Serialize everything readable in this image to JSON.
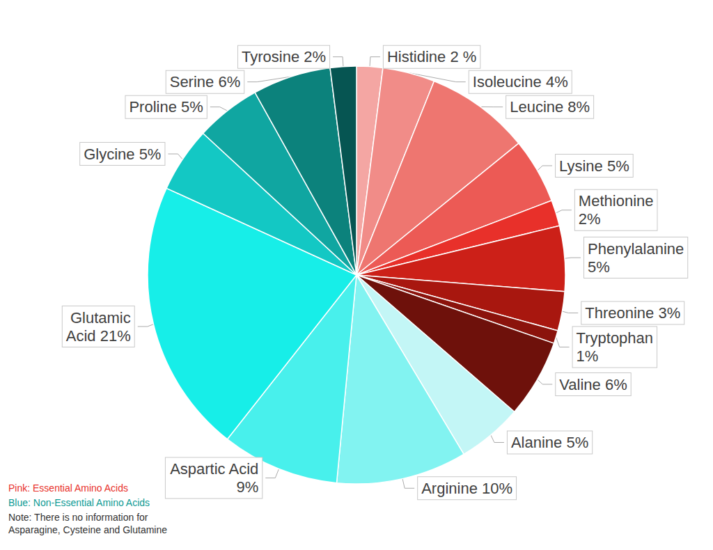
{
  "chart_data": {
    "type": "pie",
    "categories": [
      "Histidine",
      "Isoleucine",
      "Leucine",
      "Lysine",
      "Methionine",
      "Phenylalanine",
      "Threonine",
      "Tryptophan",
      "Valine",
      "Alanine",
      "Arginine",
      "Aspartic Acid",
      "Glutamic Acid",
      "Glycine",
      "Proline",
      "Serine",
      "Tyrosine"
    ],
    "values": [
      2,
      4,
      8,
      5,
      2,
      5,
      3,
      1,
      6,
      5,
      10,
      9,
      21,
      5,
      5,
      6,
      2
    ],
    "value_labels": [
      "Histidine 2 %",
      "Isoleucine 4%",
      "Leucine 8%",
      "Lysine 5%",
      "Methionine\n2%",
      "Phenylalanine\n5%",
      "Threonine 3%",
      "Tryptophan\n1%",
      "Valine 6%",
      "Alanine 5%",
      "Arginine 10%",
      "Aspartic Acid\n9%",
      "Glutamic\nAcid 21%",
      "Glycine 5%",
      "Proline 5%",
      "Serine 6%",
      "Tyrosine 2%"
    ],
    "colors": [
      "#f4a6a3",
      "#f18c88",
      "#ee7670",
      "#ec5a55",
      "#e8302a",
      "#cc2018",
      "#a8170f",
      "#8b130c",
      "#6e110b",
      "#c3f6f6",
      "#82f3f1",
      "#48f0ec",
      "#17eee8",
      "#13c8c4",
      "#10a6a1",
      "#0c827c",
      "#065552"
    ],
    "annotations": [
      {
        "text": "Pink: Essential Amino Acids",
        "color": "#e8302a"
      },
      {
        "text": "Blue: Non-Essential Amino Acids",
        "color": "#0c9a94"
      },
      {
        "text": "Note: There is no information for\nAsparagine, Cysteine and Glutamine",
        "color": "#333333"
      }
    ]
  }
}
